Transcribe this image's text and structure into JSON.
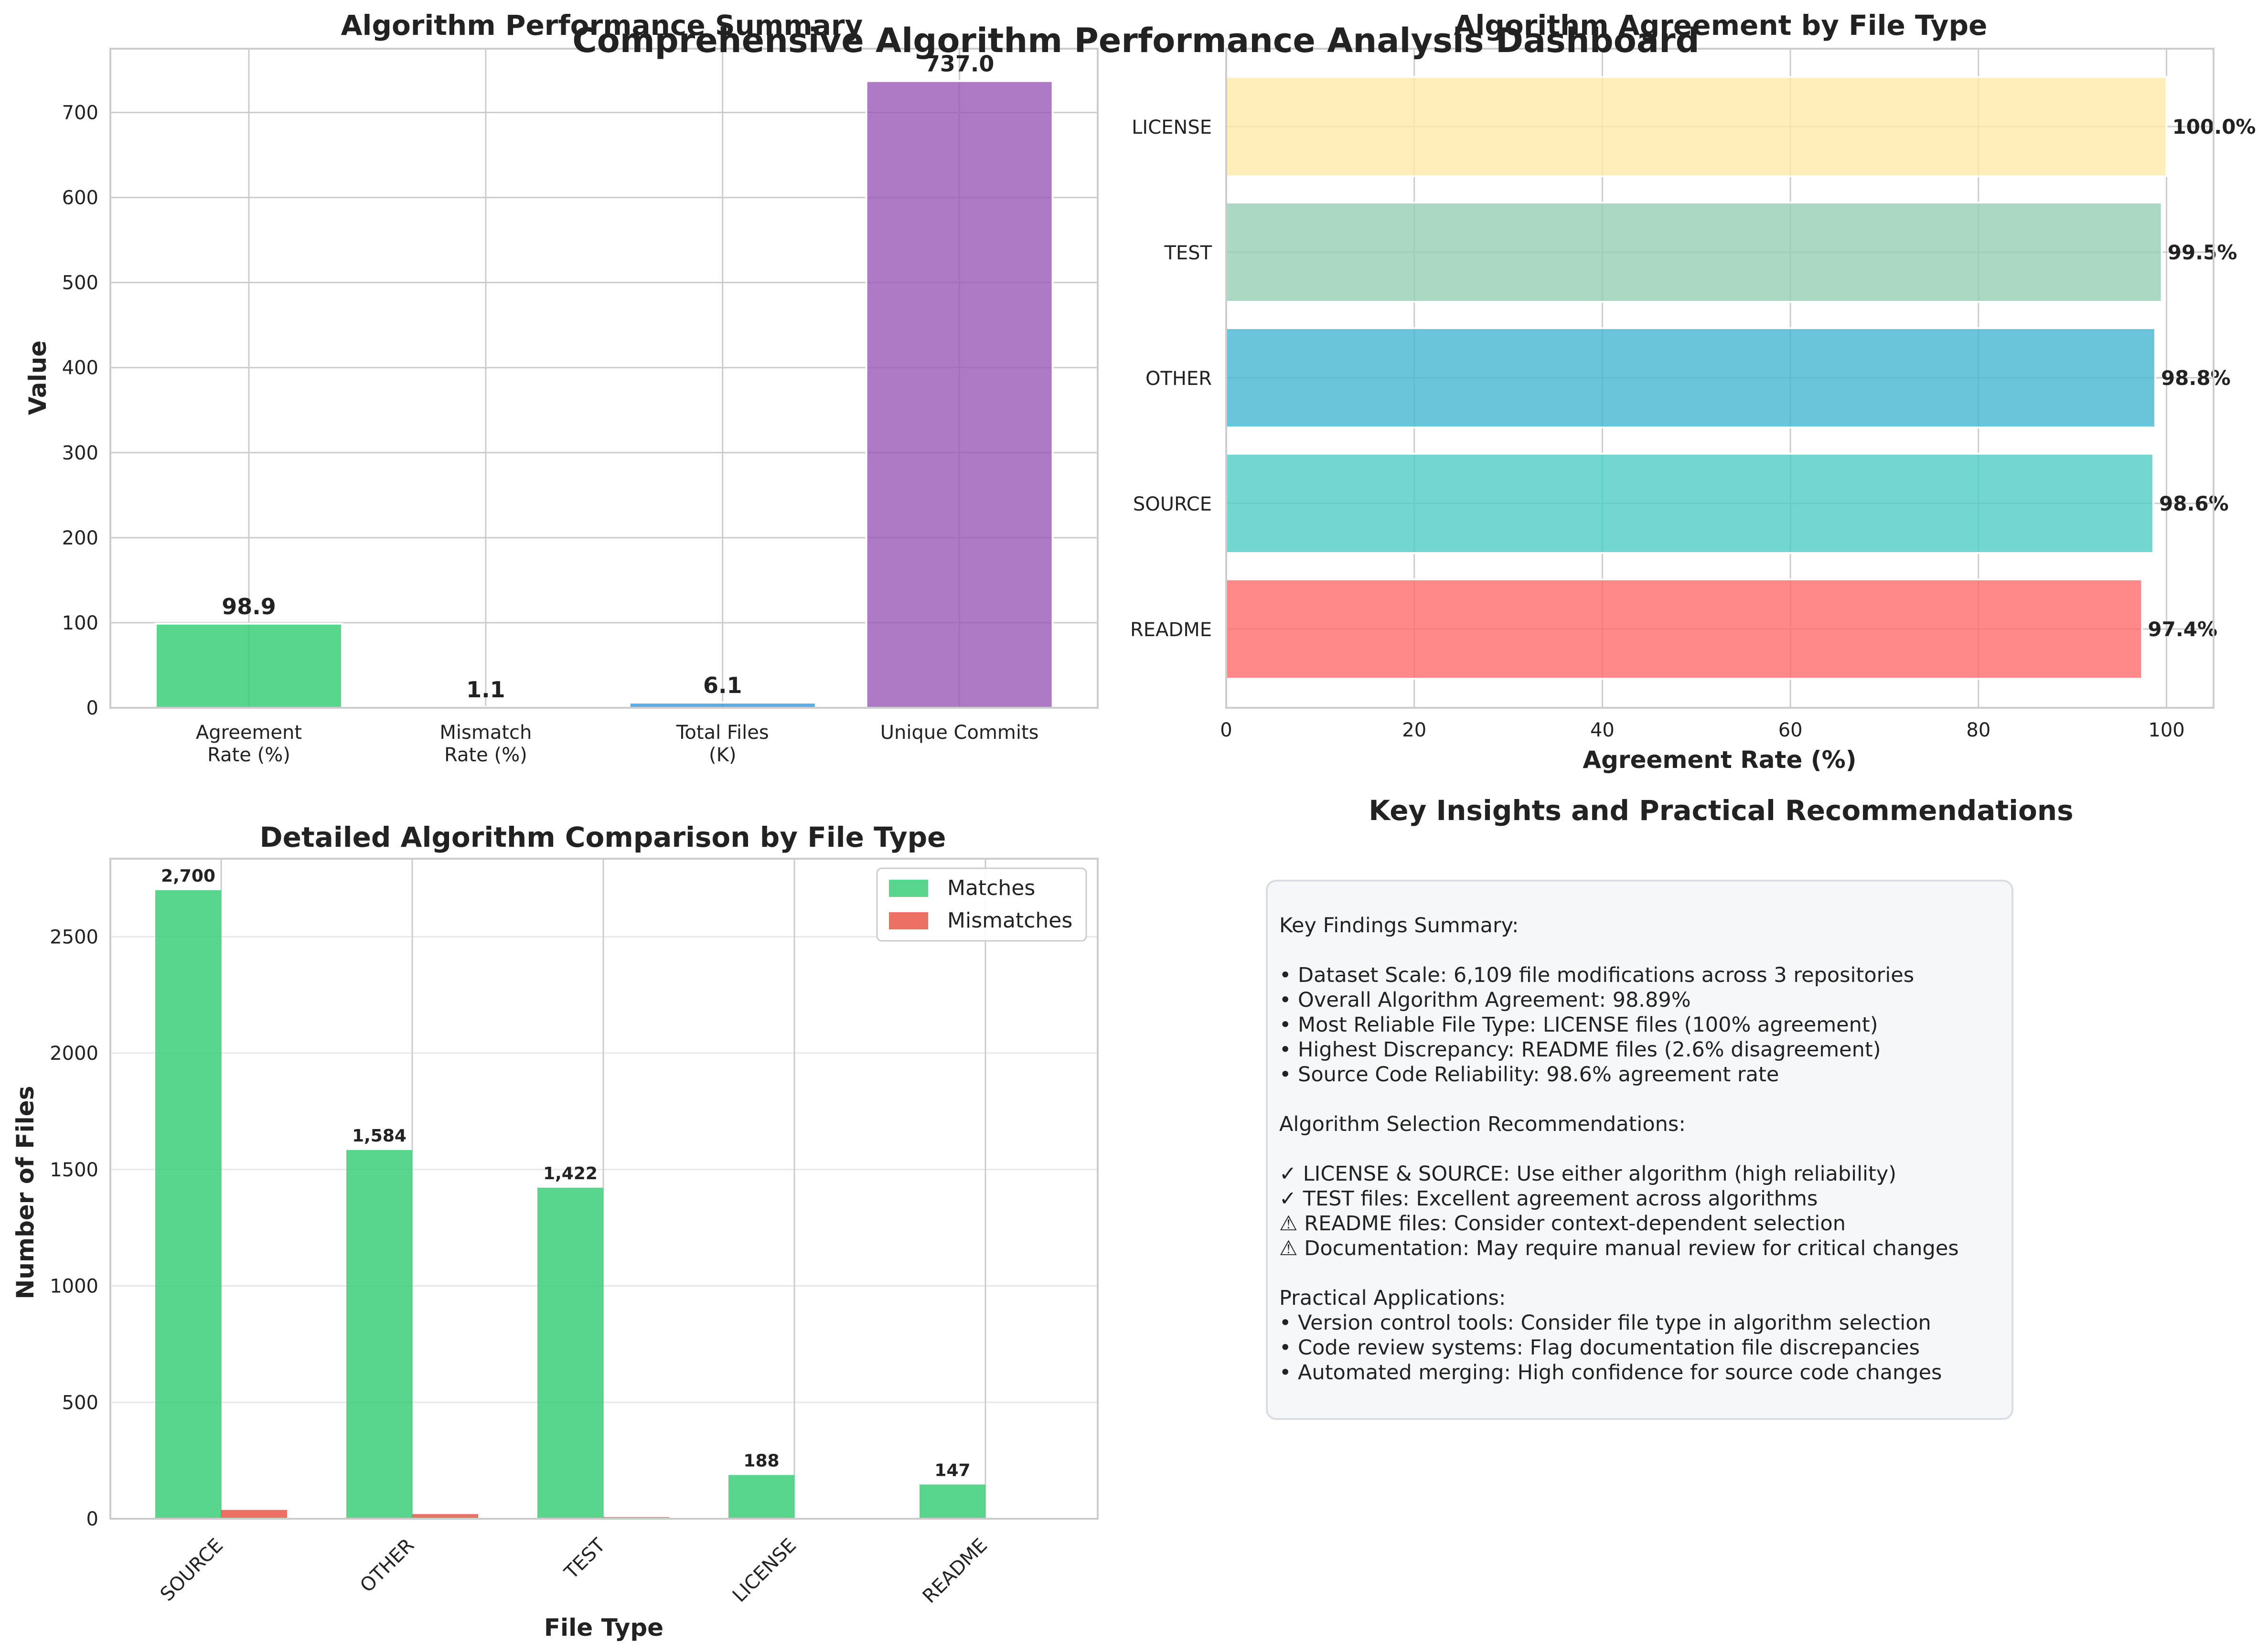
{
  "suptitle": "Comprehensive Algorithm Performance Analysis Dashboard",
  "colors": {
    "green": "#2ecc71",
    "red": "#e74c3c",
    "blue": "#3498db",
    "purple": "#9b59b6",
    "grid": "#cccccc",
    "text": "#222222",
    "file_types": {
      "LICENSE": "#ffeaa7",
      "TEST": "#96ceb4",
      "OTHER": "#45b7d1",
      "SOURCE": "#4ecdc4",
      "README": "#ff6b6b"
    }
  },
  "chart_data": [
    {
      "id": "summary",
      "type": "bar",
      "title": "Algorithm Performance Summary",
      "xlabel": "",
      "ylabel": "Value",
      "categories": [
        "Agreement\nRate (%)",
        "Mismatch\nRate (%)",
        "Total Files\n(K)",
        "Unique Commits"
      ],
      "values": [
        98.9,
        1.1,
        6.1,
        737.0
      ],
      "value_labels": [
        "98.9",
        "1.1",
        "6.1",
        "737.0"
      ],
      "colors": [
        "#2ecc71",
        "#e74c3c",
        "#3498db",
        "#9b59b6"
      ],
      "ylim": [
        0,
        775
      ],
      "yticks": [
        0,
        100,
        200,
        300,
        400,
        500,
        600,
        700
      ],
      "grid": true
    },
    {
      "id": "agreement_by_type",
      "type": "bar",
      "orientation": "horizontal",
      "title": "Algorithm Agreement by File Type",
      "xlabel": "Agreement Rate (%)",
      "ylabel": "",
      "categories": [
        "README",
        "SOURCE",
        "OTHER",
        "TEST",
        "LICENSE"
      ],
      "values": [
        97.4,
        98.6,
        98.8,
        99.5,
        100.0
      ],
      "value_labels": [
        "97.4%",
        "98.6%",
        "98.8%",
        "99.5%",
        "100.0%"
      ],
      "colors": [
        "#ff6b6b",
        "#4ecdc4",
        "#45b7d1",
        "#96ceb4",
        "#ffeaa7"
      ],
      "xlim": [
        0,
        105
      ],
      "xticks": [
        0,
        20,
        40,
        60,
        80,
        100
      ],
      "grid": true
    },
    {
      "id": "comparison",
      "type": "bar",
      "title": "Detailed Algorithm Comparison by File Type",
      "xlabel": "File Type",
      "ylabel": "Number of Files",
      "categories": [
        "SOURCE",
        "OTHER",
        "TEST",
        "LICENSE",
        "README"
      ],
      "series": [
        {
          "name": "Matches",
          "values": [
            2700,
            1584,
            1422,
            188,
            147
          ],
          "color": "#2ecc71"
        },
        {
          "name": "Mismatches",
          "values": [
            38,
            20,
            7,
            0,
            4
          ],
          "color": "#e74c3c"
        }
      ],
      "match_labels": [
        "2,700",
        "1,584",
        "1,422",
        "188",
        "147"
      ],
      "ylim": [
        0,
        2835
      ],
      "yticks": [
        0,
        500,
        1000,
        1500,
        2000,
        2500
      ],
      "legend": "top-right",
      "grid": true
    }
  ],
  "insights": {
    "title": "Key Insights and Practical Recommendations",
    "lines": [
      "Key Findings Summary:",
      "",
      "• Dataset Scale: 6,109 file modifications across 3 repositories",
      "• Overall Algorithm Agreement: 98.89%",
      "• Most Reliable File Type: LICENSE files (100% agreement)",
      "• Highest Discrepancy: README files (2.6% disagreement)",
      "• Source Code Reliability: 98.6% agreement rate",
      "",
      "Algorithm Selection Recommendations:",
      "",
      "✓ LICENSE & SOURCE: Use either algorithm (high reliability)",
      "✓ TEST files: Excellent agreement across algorithms",
      "⚠ README files: Consider context-dependent selection",
      "⚠ Documentation: May require manual review for critical changes",
      "",
      "Practical Applications:",
      "• Version control tools: Consider file type in algorithm selection",
      "• Code review systems: Flag documentation file discrepancies",
      "• Automated merging: High confidence for source code changes"
    ]
  }
}
